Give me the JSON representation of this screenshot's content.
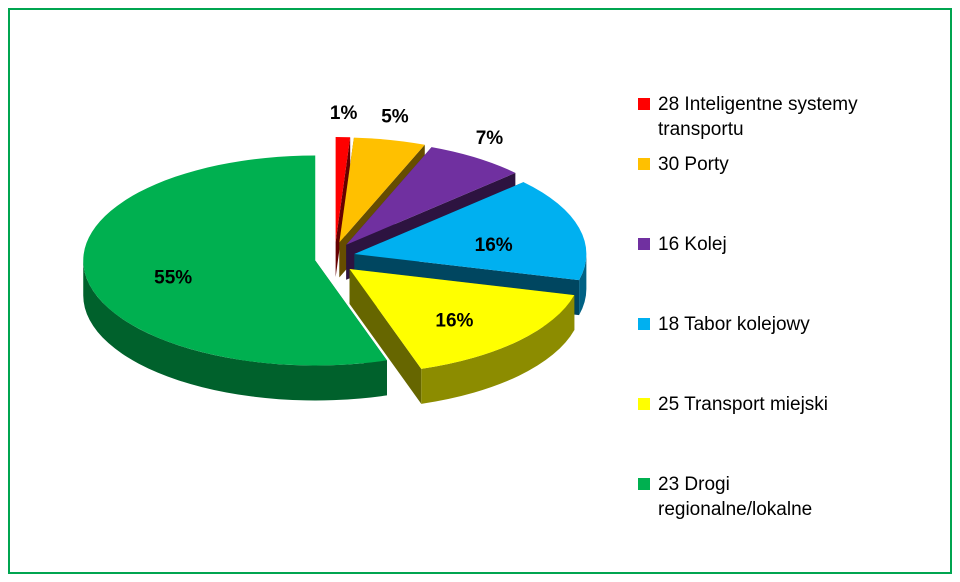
{
  "chart_data": {
    "type": "pie3d",
    "series": [
      {
        "name": "28 Inteligentne systemy transportu",
        "color": "#ff0000",
        "values": [
          1
        ],
        "value_labels": [
          "1%"
        ]
      },
      {
        "name": "30 Porty",
        "color": "#ffc000",
        "values": [
          5
        ],
        "value_labels": [
          "5%"
        ]
      },
      {
        "name": "16 Kolej",
        "color": "#7030a0",
        "values": [
          7
        ],
        "value_labels": [
          "7%"
        ]
      },
      {
        "name": "18 Tabor kolejowy",
        "color": "#00b0f0",
        "values": [
          16
        ],
        "value_labels": [
          "16%"
        ]
      },
      {
        "name": "25 Transport miejski",
        "color": "#ffff00",
        "values": [
          16
        ],
        "value_labels": [
          "16%"
        ]
      },
      {
        "name": "23 Drogi regionalne/lokalne",
        "color": "#00b050",
        "values": [
          55
        ],
        "value_labels": [
          "55%"
        ]
      }
    ],
    "legend": "right"
  }
}
